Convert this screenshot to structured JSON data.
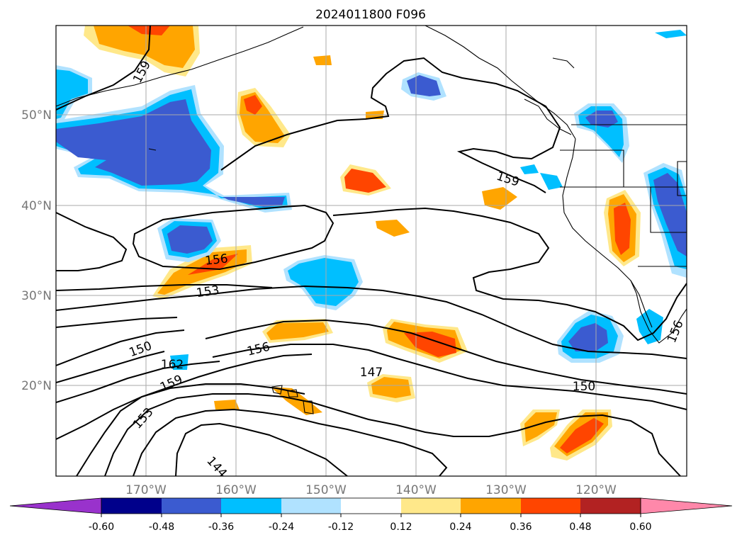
{
  "map": {
    "title": "2024011800 F096",
    "lat_labels": [
      "50°N",
      "40°N",
      "30°N",
      "20°N"
    ],
    "lon_labels": [
      "170°W",
      "160°W",
      "150°W",
      "140°W",
      "130°W",
      "120°W"
    ],
    "contour_labels": [
      "159",
      "159",
      "156",
      "153",
      "150",
      "162",
      "156",
      "159",
      "153",
      "147",
      "150",
      "144",
      "156"
    ],
    "colorbar": {
      "tick_labels": [
        "-0.60",
        "-0.48",
        "-0.36",
        "-0.24",
        "-0.12",
        "0.12",
        "0.24",
        "0.36",
        "0.48",
        "0.60"
      ],
      "colors": [
        "#9932cc",
        "#00008b",
        "#3b5bd0",
        "#00bfff",
        "#b0e2ff",
        "#ffffff",
        "#ffe88a",
        "#ffa500",
        "#ff4500",
        "#b22222",
        "#ff88aa"
      ]
    }
  }
}
